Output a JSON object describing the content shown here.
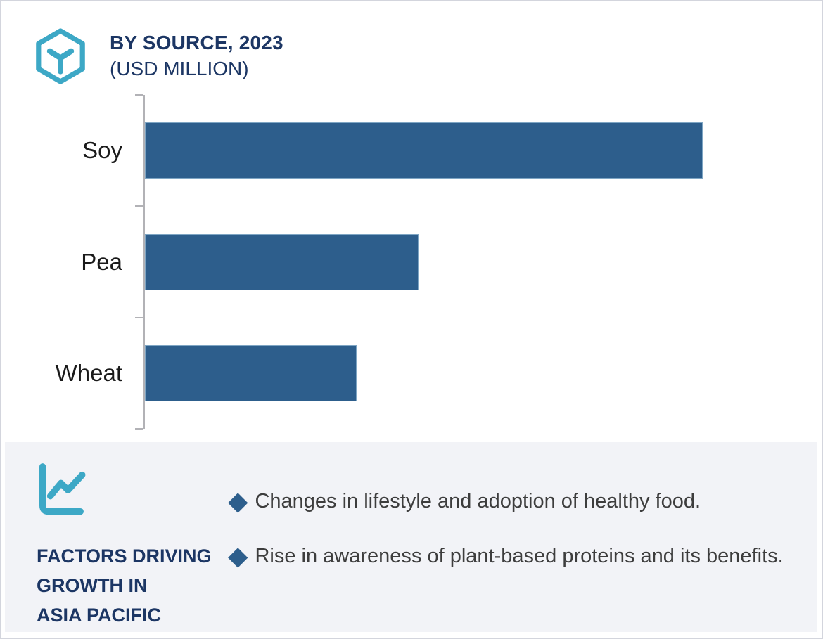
{
  "header": {
    "title": "BY SOURCE, 2023",
    "subtitle": "(USD MILLION)",
    "logo_icon": "hexagon-cube-icon"
  },
  "chart_data": {
    "type": "bar",
    "orientation": "horizontal",
    "title": "BY SOURCE, 2023 (USD MILLION)",
    "categories": [
      "Soy",
      "Pea",
      "Wheat"
    ],
    "values": [
      100,
      49,
      38
    ],
    "value_labels_shown": false,
    "unit": "USD Million",
    "xlabel": "",
    "ylabel": "",
    "grid": false,
    "legend": false,
    "bar_color": "#2d5e8c",
    "axis_color": "#b2b2b6"
  },
  "factors": {
    "icon": "line-chart-icon",
    "heading_lines": [
      "FACTORS DRIVING",
      "GROWTH IN",
      "ASIA PACIFIC"
    ],
    "bullet_marker": "◆",
    "bullets": [
      "Changes in lifestyle and adoption of healthy food.",
      "Rise in awareness of plant-based proteins and its benefits."
    ]
  },
  "colors": {
    "accent_teal": "#3da8c6",
    "navy": "#1c3664",
    "bar_blue": "#2d5e8c",
    "panel_bg": "#f2f3f7",
    "body_text": "#3d3d3d"
  }
}
